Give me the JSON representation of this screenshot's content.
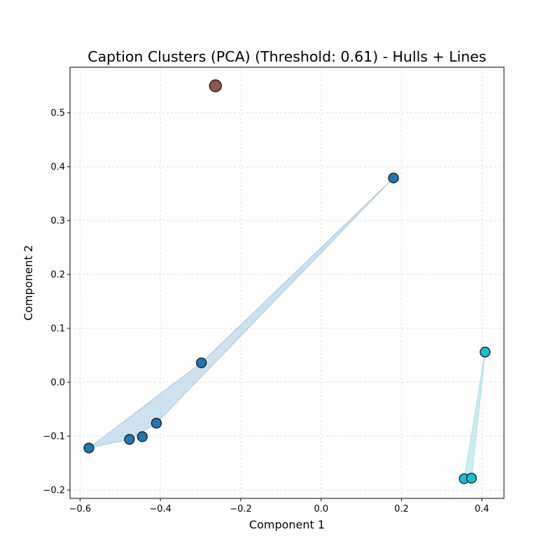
{
  "chart_data": {
    "type": "scatter",
    "title": "Caption Clusters (PCA) (Threshold: 0.61) - Hulls + Lines",
    "xlabel": "Component 1",
    "ylabel": "Component 2",
    "xlim": [
      -0.625,
      0.455
    ],
    "ylim": [
      -0.2155,
      0.5845
    ],
    "xticks": [
      -0.6,
      -0.4,
      -0.2,
      0.0,
      0.2,
      0.4
    ],
    "xtick_labels": [
      "−0.6",
      "−0.4",
      "−0.2",
      "0.0",
      "0.2",
      "0.4"
    ],
    "yticks": [
      -0.2,
      -0.1,
      0.0,
      0.1,
      0.2,
      0.3,
      0.4,
      0.5
    ],
    "ytick_labels": [
      "−0.2",
      "−0.1",
      "0.0",
      "0.1",
      "0.2",
      "0.3",
      "0.4",
      "0.5"
    ],
    "grid": true,
    "series": [
      {
        "color": "#1f77b4",
        "hull_color": "#a6c8e0",
        "points": [
          {
            "x": -0.578,
            "y": -0.122
          },
          {
            "x": -0.477,
            "y": -0.106
          },
          {
            "x": -0.445,
            "y": -0.101
          },
          {
            "x": -0.41,
            "y": -0.076
          },
          {
            "x": -0.298,
            "y": 0.036
          },
          {
            "x": 0.18,
            "y": 0.379
          }
        ],
        "hull": [
          {
            "x": -0.578,
            "y": -0.122
          },
          {
            "x": -0.298,
            "y": 0.036
          },
          {
            "x": 0.18,
            "y": 0.379
          },
          {
            "x": -0.41,
            "y": -0.076
          },
          {
            "x": -0.477,
            "y": -0.106
          }
        ]
      },
      {
        "color": "#17becf",
        "hull_color": "#9ee0e8",
        "points": [
          {
            "x": 0.408,
            "y": 0.056
          },
          {
            "x": 0.356,
            "y": -0.179
          },
          {
            "x": 0.374,
            "y": -0.178
          }
        ],
        "hull": [
          {
            "x": 0.408,
            "y": 0.056
          },
          {
            "x": 0.356,
            "y": -0.179
          },
          {
            "x": 0.374,
            "y": -0.178
          }
        ]
      },
      {
        "color": "#8c564b",
        "hull_color": "",
        "points": [
          {
            "x": -0.263,
            "y": 0.55
          }
        ],
        "hull": []
      }
    ]
  }
}
